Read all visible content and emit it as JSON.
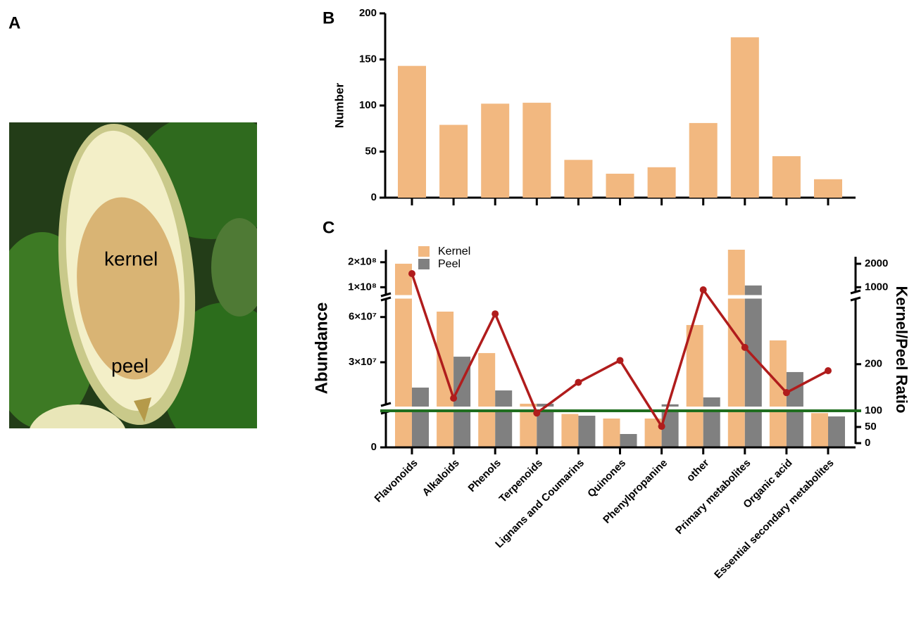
{
  "panel_a": {
    "panel_label": "A",
    "labels": [
      "kernel",
      "peel"
    ]
  },
  "chart_data": [
    {
      "type": "bar",
      "panel_label": "B",
      "ylabel": "Number",
      "values": [
        143,
        79,
        102,
        103,
        41,
        26,
        33,
        81,
        174,
        45,
        20
      ],
      "color": "#f2b880",
      "ylim": [
        0,
        200
      ],
      "yticks": [
        0,
        50,
        100,
        150,
        200
      ]
    },
    {
      "type": "bar_line",
      "panel_label": "C",
      "ylabel": "Abundance",
      "y2label": "Kernel/Peel Ratio",
      "categories": [
        "Flavonoids",
        "Alkaloids",
        "Phenols",
        "Terpenoids",
        "Lignans and Coumarins",
        "Quinones",
        "Phenylpropanine",
        "other",
        "Primary metabolites",
        "Organic acid",
        "Essential secondary metabolites"
      ],
      "series": [
        {
          "name": "Kernel",
          "color": "#f2b880",
          "values": [
            194000000,
            63600000,
            36100000,
            2500000,
            1900000,
            1640000,
            1640000,
            54700000,
            250000000,
            44500000,
            1950000
          ]
        },
        {
          "name": "Peel",
          "color": "#808080",
          "values": [
            13200000,
            33700000,
            11300000,
            2500000,
            1800000,
            760000,
            2100000,
            6700000,
            107000000,
            23500000,
            1760000
          ]
        },
        {
          "axis": "y2",
          "color": "#b01c1c",
          "values": [
            1580,
            127,
            308,
            93,
            161,
            208,
            52,
            890,
            236,
            139,
            186
          ]
        }
      ],
      "y_segments": [
        {
          "ylim": [
            0,
            2000000
          ],
          "yticks": [
            0
          ]
        },
        {
          "ylim": [
            2000000,
            72000000
          ],
          "yticks": [
            {
              "value": 30000000,
              "label": "3×10⁷"
            },
            {
              "value": 60000000,
              "label": "6×10⁷"
            }
          ]
        },
        {
          "ylim": [
            70000000,
            250000000
          ],
          "yticks": [
            {
              "value": 100000000,
              "label": "1×10⁸"
            },
            {
              "value": 200000000,
              "label": "2×10⁸"
            }
          ]
        }
      ],
      "y2_segments": [
        {
          "ylim": [
            0,
            100
          ],
          "yticks": [
            0,
            50,
            100
          ]
        },
        {
          "ylim": [
            100,
            340
          ],
          "yticks": [
            200
          ]
        },
        {
          "ylim": [
            800,
            2300
          ],
          "yticks": [
            1000,
            2000
          ]
        }
      ],
      "reference_line": {
        "axis": "y2",
        "value": 100,
        "color": "#1f6e1f"
      }
    }
  ]
}
